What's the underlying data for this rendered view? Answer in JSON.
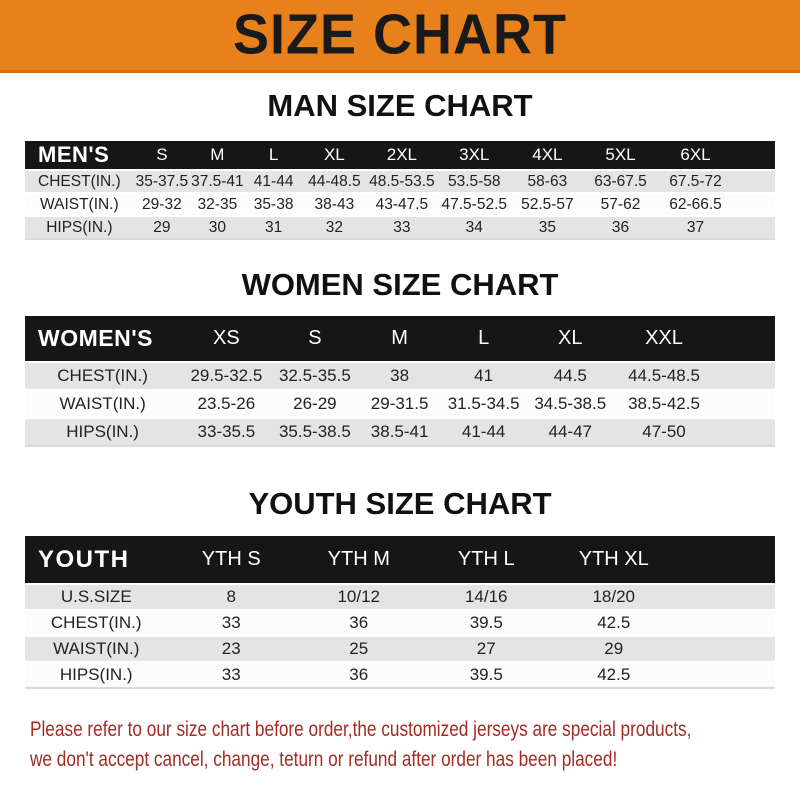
{
  "banner": {
    "title": "SIZE CHART"
  },
  "sections": [
    {
      "title": "MAN SIZE CHART",
      "table": {
        "header": [
          "MEN'S",
          "S",
          "M",
          "L",
          "XL",
          "2XL",
          "3XL",
          "4XL",
          "5XL",
          "6XL"
        ],
        "rows": [
          [
            "CHEST(IN.)",
            "35-37.5",
            "37.5-41",
            "41-44",
            "44-48.5",
            "48.5-53.5",
            "53.5-58",
            "58-63",
            "63-67.5",
            "67.5-72"
          ],
          [
            "WAIST(IN.)",
            "29-32",
            "32-35",
            "35-38",
            "38-43",
            "43-47.5",
            "47.5-52.5",
            "52.5-57",
            "57-62",
            "62-66.5"
          ],
          [
            "HIPS(IN.)",
            "29",
            "30",
            "31",
            "32",
            "33",
            "34",
            "35",
            "36",
            "37"
          ]
        ]
      }
    },
    {
      "title": "WOMEN SIZE CHART",
      "table": {
        "header": [
          "WOMEN'S",
          "XS",
          "S",
          "M",
          "L",
          "XL",
          "XXL"
        ],
        "rows": [
          [
            "CHEST(IN.)",
            "29.5-32.5",
            "32.5-35.5",
            "38",
            "41",
            "44.5",
            "44.5-48.5"
          ],
          [
            "WAIST(IN.)",
            "23.5-26",
            "26-29",
            "29-31.5",
            "31.5-34.5",
            "34.5-38.5",
            "38.5-42.5"
          ],
          [
            "HIPS(IN.)",
            "33-35.5",
            "35.5-38.5",
            "38.5-41",
            "41-44",
            "44-47",
            "47-50"
          ]
        ]
      }
    },
    {
      "title": "YOUTH SIZE CHART",
      "table": {
        "header": [
          "YOUTH",
          "YTH S",
          "YTH M",
          "YTH L",
          "YTH XL"
        ],
        "rows": [
          [
            "U.S.SIZE",
            "8",
            "10/12",
            "14/16",
            "18/20"
          ],
          [
            "CHEST(IN.)",
            "33",
            "36",
            "39.5",
            "42.5"
          ],
          [
            "WAIST(IN.)",
            "23",
            "25",
            "27",
            "29"
          ],
          [
            "HIPS(IN.)",
            "33",
            "36",
            "39.5",
            "42.5"
          ]
        ]
      }
    }
  ],
  "footer": {
    "line1": "Please refer to our size chart before order,the customized jerseys are special products,",
    "line2": "we don't accept cancel, change, teturn or refund after order has been placed!"
  },
  "colors": {
    "banner_orange": "#E8811B",
    "header_bar_black": "#161616",
    "row_gray": "#e4e4e4",
    "row_white": "#fcfcfc",
    "disclaimer_red": "#A32C25"
  }
}
